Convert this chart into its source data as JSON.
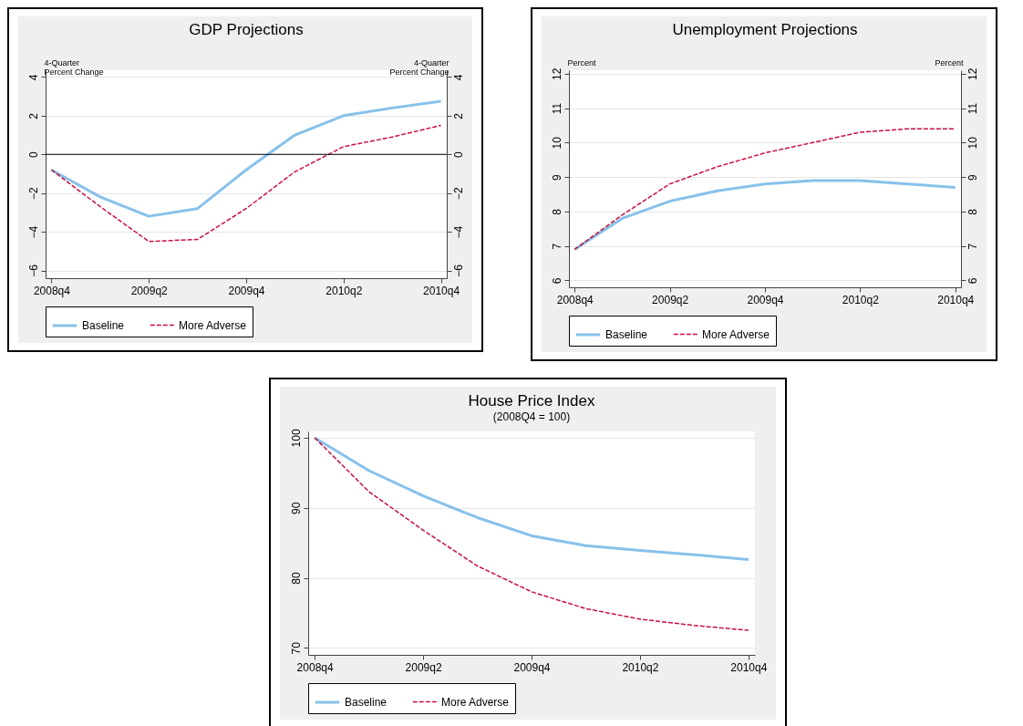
{
  "chart_data": [
    {
      "type": "line",
      "title": "GDP Projections",
      "ylabel": "4-Quarter Percent Change",
      "y2label": "4-Quarter Percent Change",
      "categories": [
        "2008q4",
        null,
        "2009q2",
        null,
        "2009q4",
        null,
        "2010q2",
        null,
        "2010q4"
      ],
      "series": [
        {
          "name": "Baseline",
          "color": "#87c1ea",
          "line_style": "solid",
          "values": [
            -0.8,
            -2.2,
            -3.2,
            -2.8,
            -0.8,
            1.0,
            2.0,
            2.4,
            2.75
          ]
        },
        {
          "name": "More Adverse",
          "color": "#c8103c",
          "line_style": "dashed",
          "values": [
            -0.8,
            -2.7,
            -4.5,
            -4.4,
            -2.8,
            -0.9,
            0.4,
            0.9,
            1.5
          ]
        }
      ],
      "ylim": [
        -6.4,
        4.35
      ],
      "yticks": [
        -6,
        -4,
        -2,
        0,
        2,
        4
      ],
      "y2lim": [
        -6.4,
        4.35
      ],
      "y2ticks": [
        -6,
        -4,
        -2,
        0,
        2,
        4
      ],
      "grid": "y",
      "legend": "bottom",
      "ref_lines": [
        {
          "axis": "y",
          "value": 0,
          "color": "#000000"
        }
      ]
    },
    {
      "type": "line",
      "title": "Unemployment Projections",
      "ylabel": "Percent",
      "y2label": "Percent",
      "categories": [
        "2008q4",
        null,
        "2009q2",
        null,
        "2009q4",
        null,
        "2010q2",
        null,
        "2010q4"
      ],
      "series": [
        {
          "name": "Baseline",
          "color": "#87c1ea",
          "line_style": "solid",
          "values": [
            6.9,
            7.8,
            8.3,
            8.6,
            8.8,
            8.9,
            8.9,
            8.8,
            8.7
          ]
        },
        {
          "name": "More Adverse",
          "color": "#c8103c",
          "line_style": "dashed",
          "values": [
            6.9,
            7.9,
            8.8,
            9.3,
            9.7,
            10.0,
            10.3,
            10.4,
            10.4
          ]
        }
      ],
      "ylim": [
        5.8,
        12.1
      ],
      "yticks": [
        6,
        7,
        8,
        9,
        10,
        11,
        12
      ],
      "y2lim": [
        5.8,
        12.1
      ],
      "y2ticks": [
        6,
        7,
        8,
        9,
        10,
        11,
        12
      ],
      "grid": "y",
      "legend": "bottom"
    },
    {
      "type": "line",
      "title": "House Price Index",
      "subtitle": "(2008Q4 = 100)",
      "categories": [
        "2008q4",
        null,
        "2009q2",
        null,
        "2009q4",
        null,
        "2010q2",
        null,
        "2010q4"
      ],
      "series": [
        {
          "name": "Baseline",
          "color": "#87c1ea",
          "line_style": "solid",
          "values": [
            100,
            95.3,
            91.7,
            88.6,
            86.0,
            84.6,
            83.9,
            83.3,
            82.6
          ]
        },
        {
          "name": "More Adverse",
          "color": "#c8103c",
          "line_style": "dashed",
          "values": [
            100,
            92.3,
            86.8,
            81.7,
            78.0,
            75.6,
            74.1,
            73.2,
            72.5
          ]
        }
      ],
      "ylim": [
        69.0,
        100.9
      ],
      "yticks": [
        70,
        80,
        90,
        100
      ],
      "grid": "y",
      "legend": "bottom"
    }
  ]
}
